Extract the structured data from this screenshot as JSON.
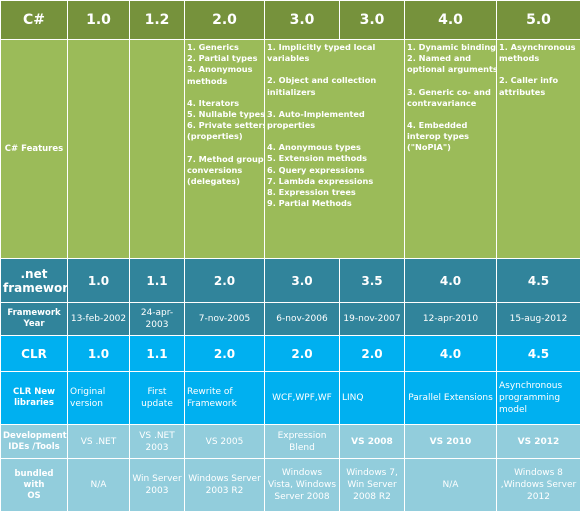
{
  "csharp": {
    "label": "C#",
    "versions": [
      "1.0",
      "1.2",
      "2.0",
      "3.0",
      "3.0",
      "4.0",
      "5.0"
    ]
  },
  "features": {
    "label": "C# Features",
    "columns": [
      [],
      [],
      [
        "1. Generics",
        "2. Partial types",
        "3. Anonymous",
        "methods",
        "",
        "4. Iterators",
        "5. Nullable types",
        "6. Private setters",
        "(properties)",
        "",
        "7. Method group",
        "conversions",
        "(delegates)"
      ],
      [
        "1. Implicitly typed local",
        "variables",
        "",
        "2. Object and collection",
        "initializers",
        "",
        "3. Auto-Implemented",
        "properties",
        "",
        "4. Anonymous types",
        "5. Extension methods",
        "6. Query expressions",
        "7. Lambda expressions",
        "8. Expression trees",
        "9. Partial Methods"
      ],
      [
        "1. Dynamic binding",
        "2. Named and",
        "optional arguments",
        "",
        "3. Generic co- and",
        "contravariance",
        "",
        "4. Embedded",
        "interop types",
        "(\"NoPIA\")"
      ],
      [
        "1. Asynchronous",
        "methods",
        "",
        "2. Caller info",
        "attributes"
      ]
    ]
  },
  "framework": {
    "label_line1": ".net",
    "label_line2": "framework",
    "versions": [
      "1.0",
      "1.1",
      "2.0",
      "3.0",
      "3.5",
      "4.0",
      "4.5"
    ]
  },
  "year": {
    "label_line1": "Framework",
    "label_line2": "Year",
    "values": [
      "13-feb-2002",
      "24-apr-2003",
      "7-nov-2005",
      "6-nov-2006",
      "19-nov-2007",
      "12-apr-2010",
      "15-aug-2012"
    ]
  },
  "clr": {
    "label": "CLR",
    "versions": [
      "1.0",
      "1.1",
      "2.0",
      "2.0",
      "2.0",
      "4.0",
      "4.5"
    ]
  },
  "libraries": {
    "label_line1": "CLR New",
    "label_line2": "libraries",
    "values": [
      [
        "Original",
        "version"
      ],
      [
        "First update"
      ],
      [
        "Rewrite of",
        "Framework"
      ],
      [
        "WCF,WPF,WF"
      ],
      [
        "LINQ"
      ],
      [
        "Parallel Extensions"
      ],
      [
        "Asynchronous",
        "programming",
        "model"
      ]
    ]
  },
  "ides": {
    "label_line1": "Development",
    "label_line2": "IDEs /Tools",
    "values": [
      [
        "VS .NET"
      ],
      [
        "VS .NET",
        "2003"
      ],
      [
        "VS 2005"
      ],
      [
        "Expression",
        "Blend"
      ],
      [
        "VS 2008"
      ],
      [
        "VS 2010"
      ],
      [
        "VS 2012"
      ]
    ]
  },
  "os": {
    "label_line1": "bundled with",
    "label_line2": "OS",
    "values": [
      [
        "N/A"
      ],
      [
        "Win Server",
        "2003"
      ],
      [
        "Windows Server",
        "2003 R2"
      ],
      [
        "Windows",
        "Vista, Windows",
        "Server 2008"
      ],
      [
        "Windows 7,",
        "Win Server",
        "2008 R2"
      ],
      [
        "N/A"
      ],
      [
        "Windows 8",
        ",Windows Server",
        "2012"
      ]
    ]
  },
  "colors": {
    "csharp_header": "#76923c",
    "feature_cells": "#9bbb59",
    "framework_row": "#31849b",
    "clr_row": "#00b0f0",
    "pale_rows": "#92cddc"
  }
}
